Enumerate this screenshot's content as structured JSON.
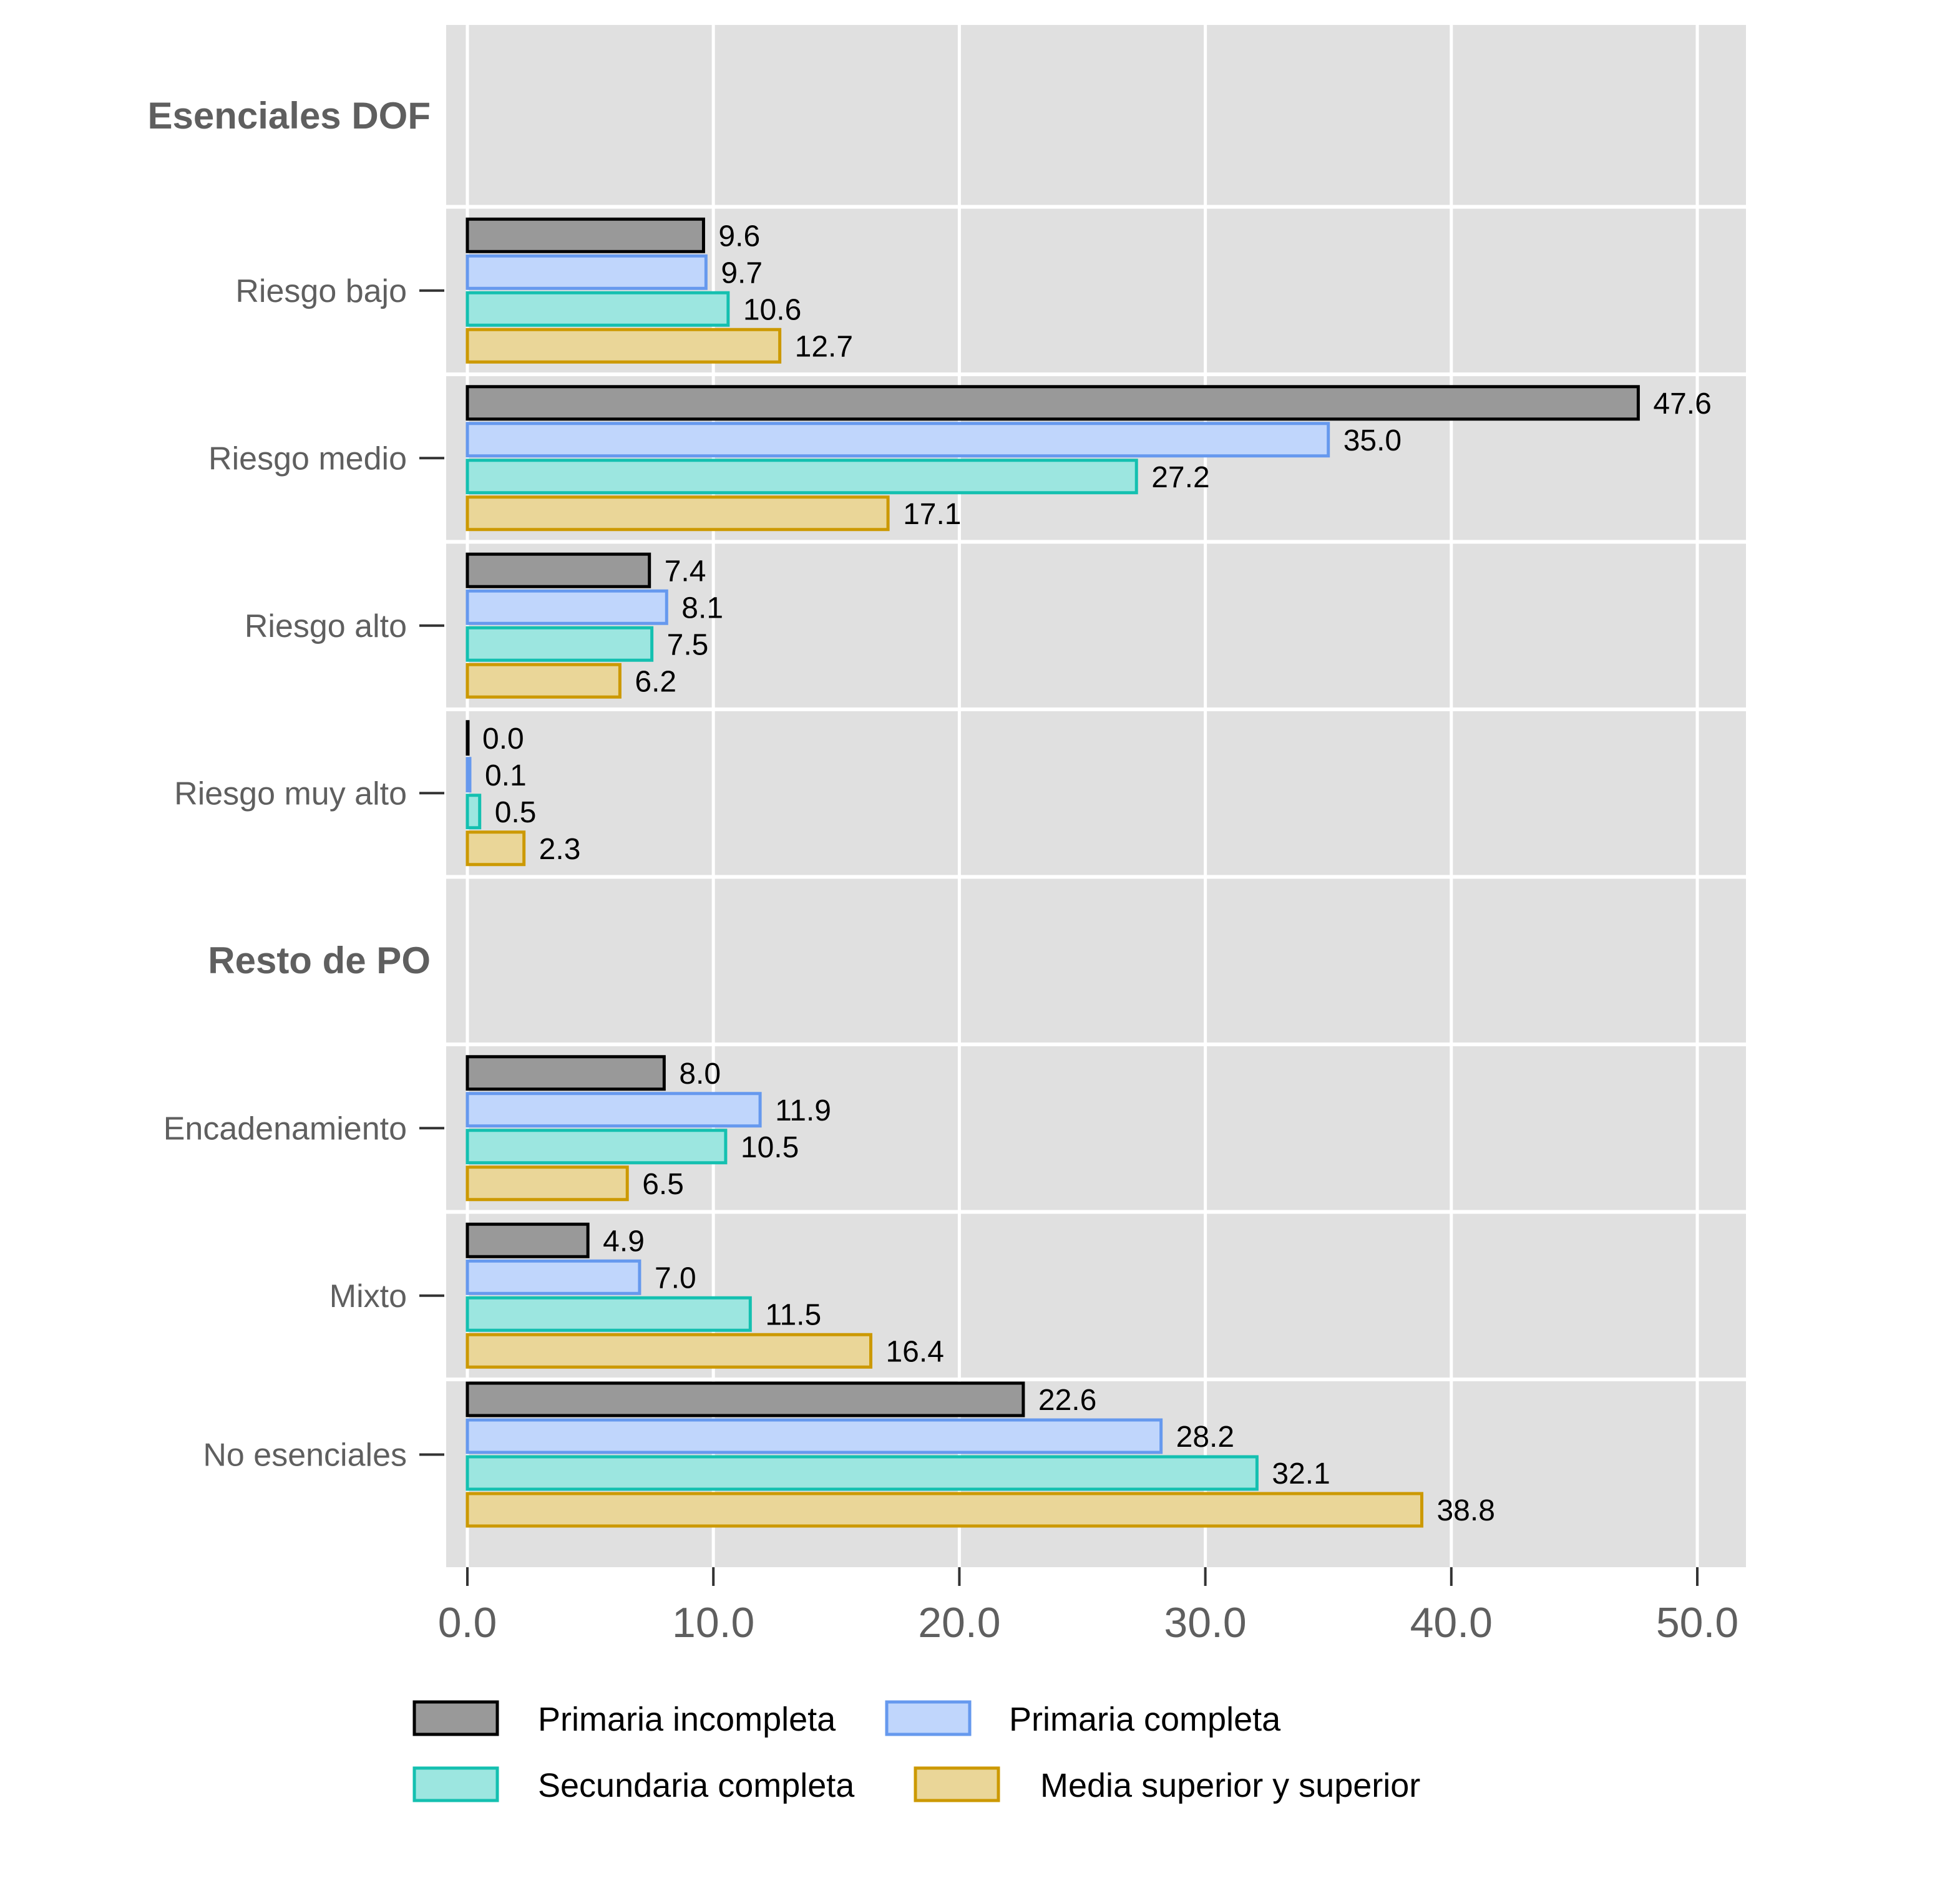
{
  "chart_data": {
    "type": "bar",
    "orientation": "horizontal",
    "title": "",
    "xlabel": "",
    "ylabel": "",
    "xlim": [
      0,
      50
    ],
    "x_ticks": [
      "0.0",
      "10.0",
      "20.0",
      "30.0",
      "40.0",
      "50.0"
    ],
    "x_tick_values": [
      0,
      10,
      20,
      30,
      40,
      50
    ],
    "grid": true,
    "legend_position": "bottom",
    "rows": [
      {
        "kind": "group",
        "label": "Esenciales DOF"
      },
      {
        "kind": "category",
        "label": "Riesgo bajo",
        "values": [
          9.6,
          9.7,
          10.6,
          12.7
        ]
      },
      {
        "kind": "category",
        "label": "Riesgo medio",
        "values": [
          47.6,
          35.0,
          27.2,
          17.1
        ]
      },
      {
        "kind": "category",
        "label": "Riesgo alto",
        "values": [
          7.4,
          8.1,
          7.5,
          6.2
        ]
      },
      {
        "kind": "category",
        "label": "Riesgo muy alto",
        "values": [
          0.0,
          0.1,
          0.5,
          2.3
        ]
      },
      {
        "kind": "group",
        "label": "Resto de PO"
      },
      {
        "kind": "category",
        "label": "Encadenamiento",
        "values": [
          8.0,
          11.9,
          10.5,
          6.5
        ]
      },
      {
        "kind": "category",
        "label": "Mixto",
        "values": [
          4.9,
          7.0,
          11.5,
          16.4
        ]
      },
      {
        "kind": "category",
        "label": "No esenciales",
        "values": [
          22.6,
          28.2,
          32.1,
          38.8
        ]
      }
    ],
    "series": [
      {
        "name": "Primaria incompleta",
        "fill": "#999999",
        "stroke": "#000000"
      },
      {
        "name": "Primaria completa",
        "fill": "#c0d6fc",
        "stroke": "#6699ee"
      },
      {
        "name": "Secundaria completa",
        "fill": "#9ce6e0",
        "stroke": "#14c0b0"
      },
      {
        "name": "Media superior y superior",
        "fill": "#ead698",
        "stroke": "#cc9900"
      }
    ],
    "colors": {
      "panel_background": "#e0e0e0",
      "grid": "#ffffff",
      "axis_text": "#5f5f5f",
      "label_text": "#000000"
    }
  }
}
